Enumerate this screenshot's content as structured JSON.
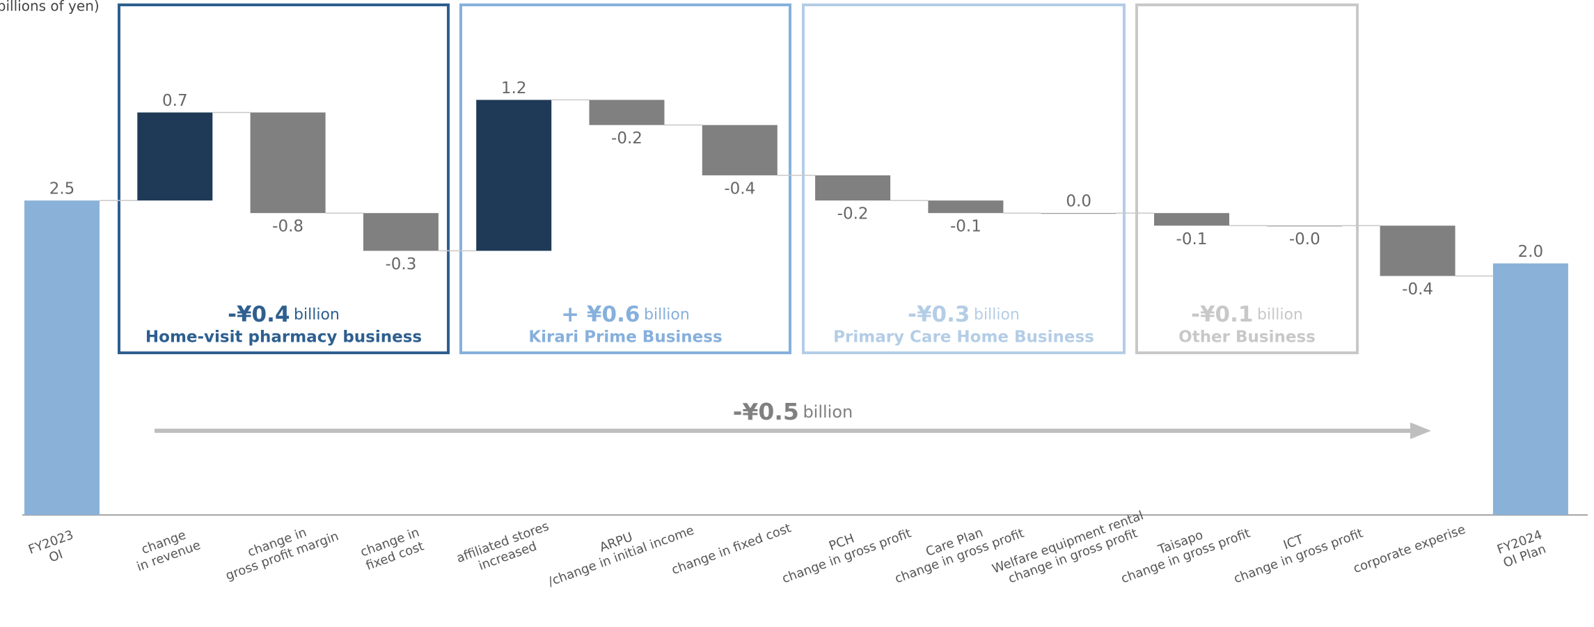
{
  "chart_data": {
    "type": "waterfall",
    "ylabel": "(billions of yen)",
    "categories": [
      "FY2023\nOI",
      "change\nin revenue",
      "change in\ngross profit margin",
      "change in\nfixed cost",
      "affiliated stores\nincreased",
      "ARPU\n/change in initial income",
      "change in fixed cost",
      "PCH\nchange in gross profit",
      "Care Plan\nchange in gross profit",
      "Welfare equipment rental\nchange in gross profit",
      "Taisapo\nchange in gross profit",
      "ICT\nchange in gross profit",
      "corporate experise",
      "FY2024\nOI Plan"
    ],
    "values": [
      2.5,
      0.7,
      -0.8,
      -0.3,
      1.2,
      -0.2,
      -0.4,
      -0.2,
      -0.1,
      0.0,
      -0.1,
      -0.0,
      -0.4,
      2.0
    ],
    "value_labels": [
      "2.5",
      "0.7",
      "-0.8",
      "-0.3",
      "1.2",
      "-0.2",
      "-0.4",
      "-0.2",
      "-0.1",
      "0.0",
      "-0.1",
      "-0.0",
      "-0.4",
      "2.0"
    ],
    "total_color": "#8ab2d8",
    "increase_color": "#1f3a57",
    "decrease_color": "#808080",
    "ylim": [
      0,
      4
    ],
    "groups": [
      {
        "amount": "-¥0.4",
        "unit": "billion",
        "name": "Home-visit pharmacy business",
        "color": "#2e5f8f"
      },
      {
        "amount": "+ ¥0.6",
        "unit": "billion",
        "name": "Kirari Prime Business",
        "color": "#86b0dc"
      },
      {
        "amount": "-¥0.3",
        "unit": "billion",
        "name": "Primary Care Home Business",
        "color": "#b4cde6"
      },
      {
        "amount": "-¥0.1",
        "unit": "billion",
        "name": "Other Business",
        "color": "#c8c8c8"
      }
    ],
    "total_change": {
      "amount": "-¥0.5",
      "unit": "billion",
      "color": "#bfbfbf"
    }
  }
}
